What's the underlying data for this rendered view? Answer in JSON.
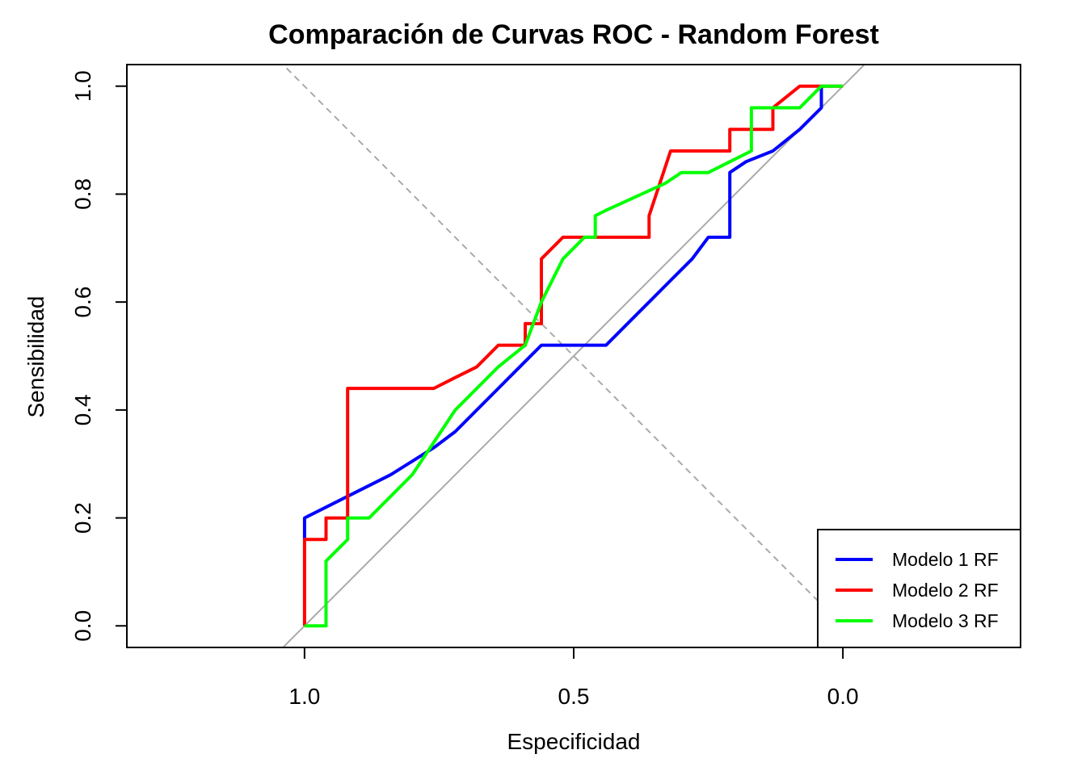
{
  "chart_data": {
    "type": "line",
    "title": "Comparación de Curvas ROC - Random Forest",
    "xlabel": "Especificidad",
    "ylabel": "Sensibilidad",
    "x_reversed": true,
    "xlim": [
      1.33,
      -0.33
    ],
    "ylim": [
      -0.04,
      1.04
    ],
    "x_ticks": [
      "1.0",
      "0.5",
      "0.0"
    ],
    "x_tick_values": [
      1.0,
      0.5,
      0.0
    ],
    "y_ticks": [
      "0.0",
      "0.2",
      "0.4",
      "0.6",
      "0.8",
      "1.0"
    ],
    "y_tick_values": [
      0.0,
      0.2,
      0.4,
      0.6,
      0.8,
      1.0
    ],
    "legend_position": "bottom-right",
    "reference_lines": [
      {
        "type": "diagonal",
        "style": "solid",
        "color": "#aaaaaa"
      },
      {
        "type": "anti-diagonal",
        "style": "dashed",
        "color": "#aaaaaa"
      }
    ],
    "series": [
      {
        "name": "Modelo 1 RF",
        "color": "#0000ff",
        "x": [
          1.0,
          1.0,
          0.92,
          0.84,
          0.76,
          0.72,
          0.64,
          0.56,
          0.52,
          0.48,
          0.44,
          0.36,
          0.32,
          0.28,
          0.25,
          0.21,
          0.21,
          0.18,
          0.13,
          0.08,
          0.04,
          0.04
        ],
        "y": [
          0.16,
          0.2,
          0.24,
          0.28,
          0.33,
          0.36,
          0.44,
          0.52,
          0.52,
          0.52,
          0.52,
          0.6,
          0.64,
          0.68,
          0.72,
          0.72,
          0.84,
          0.86,
          0.88,
          0.92,
          0.96,
          1.0
        ]
      },
      {
        "name": "Modelo 2 RF",
        "color": "#ff0000",
        "x": [
          1.0,
          1.0,
          0.96,
          0.96,
          0.92,
          0.92,
          0.84,
          0.76,
          0.72,
          0.68,
          0.64,
          0.59,
          0.59,
          0.56,
          0.56,
          0.52,
          0.48,
          0.36,
          0.36,
          0.32,
          0.25,
          0.21,
          0.21,
          0.13,
          0.13,
          0.08,
          0.04,
          0.0
        ],
        "y": [
          0.0,
          0.16,
          0.16,
          0.2,
          0.2,
          0.44,
          0.44,
          0.44,
          0.46,
          0.48,
          0.52,
          0.52,
          0.56,
          0.56,
          0.68,
          0.72,
          0.72,
          0.72,
          0.76,
          0.88,
          0.88,
          0.88,
          0.92,
          0.92,
          0.96,
          1.0,
          1.0,
          1.0
        ]
      },
      {
        "name": "Modelo 3 RF",
        "color": "#00ff00",
        "x": [
          1.0,
          0.96,
          0.96,
          0.92,
          0.92,
          0.88,
          0.84,
          0.8,
          0.76,
          0.72,
          0.64,
          0.59,
          0.56,
          0.52,
          0.48,
          0.46,
          0.46,
          0.44,
          0.33,
          0.3,
          0.25,
          0.21,
          0.17,
          0.17,
          0.13,
          0.08,
          0.04,
          0.0
        ],
        "y": [
          0.0,
          0.0,
          0.12,
          0.16,
          0.2,
          0.2,
          0.24,
          0.28,
          0.34,
          0.4,
          0.48,
          0.52,
          0.6,
          0.68,
          0.72,
          0.72,
          0.76,
          0.77,
          0.82,
          0.84,
          0.84,
          0.86,
          0.88,
          0.96,
          0.96,
          0.96,
          1.0,
          1.0
        ]
      }
    ]
  }
}
